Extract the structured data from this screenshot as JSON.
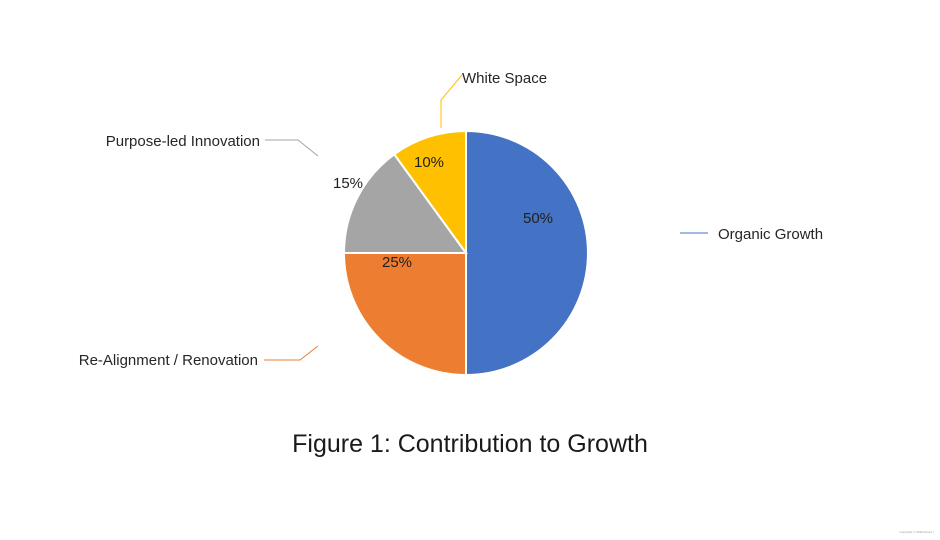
{
  "chart_data": {
    "type": "pie",
    "title": "Figure 1: Contribution to Growth",
    "slices": [
      {
        "label": "Organic Growth",
        "value": 50,
        "value_label": "50%",
        "color": "#4472C4"
      },
      {
        "label": "Re-Alignment / Renovation",
        "value": 25,
        "value_label": "25%",
        "color": "#ED7D31"
      },
      {
        "label": "Purpose-led Innovation",
        "value": 15,
        "value_label": "15%",
        "color": "#A5A5A5"
      },
      {
        "label": "White Space",
        "value": 10,
        "value_label": "10%",
        "color": "#FFC000"
      }
    ]
  },
  "footer": {
    "copyright": "Copyright © 2018 Future I"
  }
}
